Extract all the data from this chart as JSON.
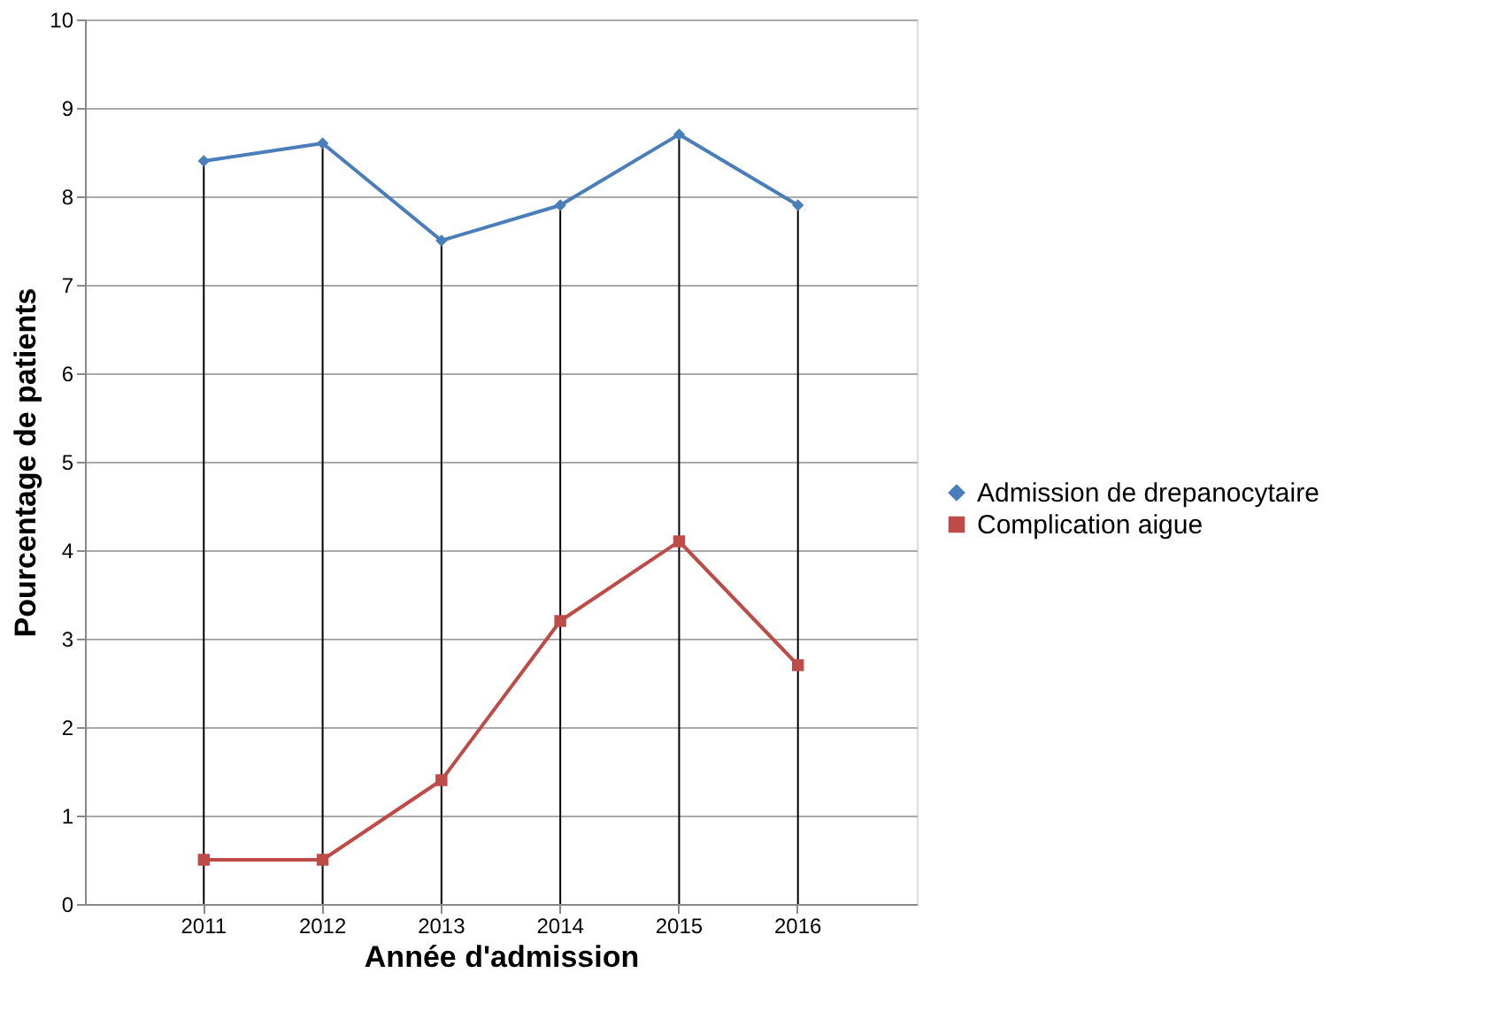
{
  "chart_data": {
    "type": "line",
    "xlabel": "Année d'admission",
    "ylabel": "Pourcentage de patients",
    "categories": [
      "2011",
      "2012",
      "2013",
      "2014",
      "2015",
      "2016"
    ],
    "series": [
      {
        "name": "Admission de drepanocytaire",
        "color": "#4a7ebb",
        "marker": "diamond",
        "values": [
          8.4,
          8.6,
          7.5,
          7.9,
          8.7,
          7.9
        ]
      },
      {
        "name": "Complication aigue",
        "color": "#be4b48",
        "marker": "square",
        "values": [
          0.5,
          0.5,
          1.4,
          3.2,
          4.1,
          2.7
        ]
      }
    ],
    "ylim": [
      0,
      10
    ],
    "yticks": [
      0,
      1,
      2,
      3,
      4,
      5,
      6,
      7,
      8,
      9,
      10
    ],
    "grid": true,
    "legend": "right",
    "line_style": "solid"
  }
}
